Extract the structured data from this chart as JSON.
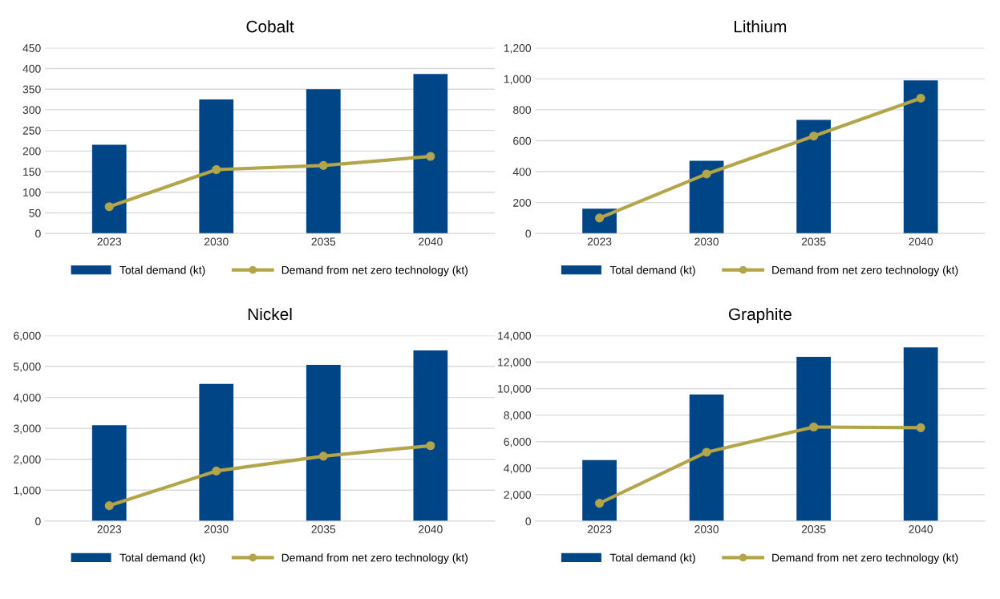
{
  "chart_data": [
    {
      "type": "bar",
      "title": "Cobalt",
      "categories": [
        "2023",
        "2030",
        "2035",
        "2040"
      ],
      "grid": "y",
      "legend": "bottom",
      "marker": "circle",
      "ylim": [
        0,
        450
      ],
      "yticks": [
        0,
        50,
        100,
        150,
        200,
        250,
        300,
        350,
        400,
        450
      ],
      "series": [
        {
          "name": "Total demand (kt)",
          "type": "bar",
          "color": "#004585",
          "values": [
            215,
            325,
            350,
            387
          ]
        },
        {
          "name": "Demand from net zero technology (kt)",
          "type": "line",
          "color": "#b2a54a",
          "values": [
            65,
            155,
            165,
            187
          ]
        }
      ]
    },
    {
      "type": "bar",
      "title": "Lithium",
      "categories": [
        "2023",
        "2030",
        "2035",
        "2040"
      ],
      "grid": "y",
      "legend": "bottom",
      "marker": "circle",
      "ylim": [
        0,
        1200
      ],
      "yticks": [
        0,
        200,
        400,
        600,
        800,
        {
          "value": 1000,
          "label": "1,000"
        },
        {
          "value": 1200,
          "label": "1,200"
        }
      ],
      "series": [
        {
          "name": "Total demand (kt)",
          "type": "bar",
          "color": "#004585",
          "values": [
            160,
            470,
            735,
            990
          ]
        },
        {
          "name": "Demand from net zero technology (kt)",
          "type": "line",
          "color": "#b2a54a",
          "values": [
            100,
            385,
            630,
            875
          ]
        }
      ]
    },
    {
      "type": "bar",
      "title": "Nickel",
      "categories": [
        "2023",
        "2030",
        "2035",
        "2040"
      ],
      "grid": "y",
      "legend": "bottom",
      "marker": "circle",
      "ylim": [
        0,
        6000
      ],
      "yticks": [
        0,
        {
          "value": 1000,
          "label": "1,000"
        },
        {
          "value": 2000,
          "label": "2,000"
        },
        {
          "value": 3000,
          "label": "3,000"
        },
        {
          "value": 4000,
          "label": "4,000"
        },
        {
          "value": 5000,
          "label": "5,000"
        },
        {
          "value": 6000,
          "label": "6,000"
        }
      ],
      "series": [
        {
          "name": "Total demand (kt)",
          "type": "bar",
          "color": "#004585",
          "values": [
            3100,
            4440,
            5050,
            5520
          ]
        },
        {
          "name": "Demand from net zero technology (kt)",
          "type": "line",
          "color": "#b2a54a",
          "values": [
            500,
            1620,
            2100,
            2440
          ]
        }
      ]
    },
    {
      "type": "bar",
      "title": "Graphite",
      "categories": [
        "2023",
        "2030",
        "2035",
        "2040"
      ],
      "grid": "y",
      "legend": "bottom",
      "marker": "circle",
      "ylim": [
        0,
        14000
      ],
      "yticks": [
        0,
        {
          "value": 2000,
          "label": "2,000"
        },
        {
          "value": 4000,
          "label": "4,000"
        },
        {
          "value": 6000,
          "label": "6,000"
        },
        {
          "value": 8000,
          "label": "8,000"
        },
        {
          "value": 10000,
          "label": "10,000"
        },
        {
          "value": 12000,
          "label": "12,000"
        },
        {
          "value": 14000,
          "label": "14,000"
        }
      ],
      "series": [
        {
          "name": "Total demand (kt)",
          "type": "bar",
          "color": "#004585",
          "values": [
            4600,
            9550,
            12400,
            13100
          ]
        },
        {
          "name": "Demand from net zero technology (kt)",
          "type": "line",
          "color": "#b2a54a",
          "values": [
            1350,
            5200,
            7100,
            7050
          ]
        }
      ]
    }
  ]
}
